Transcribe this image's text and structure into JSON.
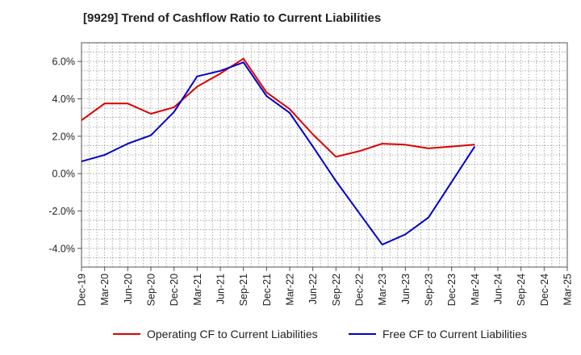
{
  "chart_data": {
    "type": "line",
    "title": "[9929]  Trend of Cashflow Ratio to Current Liabilities",
    "xlabel": "",
    "ylabel": "",
    "x": [
      "Dec-19",
      "Mar-20",
      "Jun-20",
      "Sep-20",
      "Dec-20",
      "Mar-21",
      "Jun-21",
      "Sep-21",
      "Dec-21",
      "Mar-22",
      "Jun-22",
      "Sep-22",
      "Dec-22",
      "Mar-23",
      "Jun-23",
      "Sep-23",
      "Dec-23",
      "Mar-24",
      "Jun-24",
      "Sep-24",
      "Dec-24",
      "Mar-25"
    ],
    "ylim": [
      -5.0,
      7.0
    ],
    "yticks": [
      -4.0,
      -2.0,
      0.0,
      2.0,
      4.0,
      6.0
    ],
    "ytick_labels": [
      "-4.0%",
      "-2.0%",
      "0.0%",
      "2.0%",
      "4.0%",
      "6.0%"
    ],
    "grid": true,
    "legend_position": "bottom",
    "series": [
      {
        "name": "Operating CF to Current Liabilities",
        "color": "#dd0000",
        "values": [
          2.85,
          3.75,
          3.75,
          3.2,
          3.55,
          4.65,
          5.35,
          6.15,
          4.35,
          3.45,
          2.1,
          0.9,
          1.2,
          1.6,
          1.55,
          1.35,
          1.45,
          1.55,
          null,
          null,
          null,
          null
        ]
      },
      {
        "name": "Free CF to Current Liabilities",
        "color": "#0000cc",
        "values": [
          0.65,
          1.0,
          1.6,
          2.05,
          3.3,
          5.2,
          5.5,
          5.95,
          4.15,
          3.25,
          1.45,
          -0.4,
          -2.1,
          -3.8,
          -3.25,
          -2.35,
          -0.45,
          1.45,
          null,
          null,
          null,
          null
        ]
      }
    ]
  }
}
